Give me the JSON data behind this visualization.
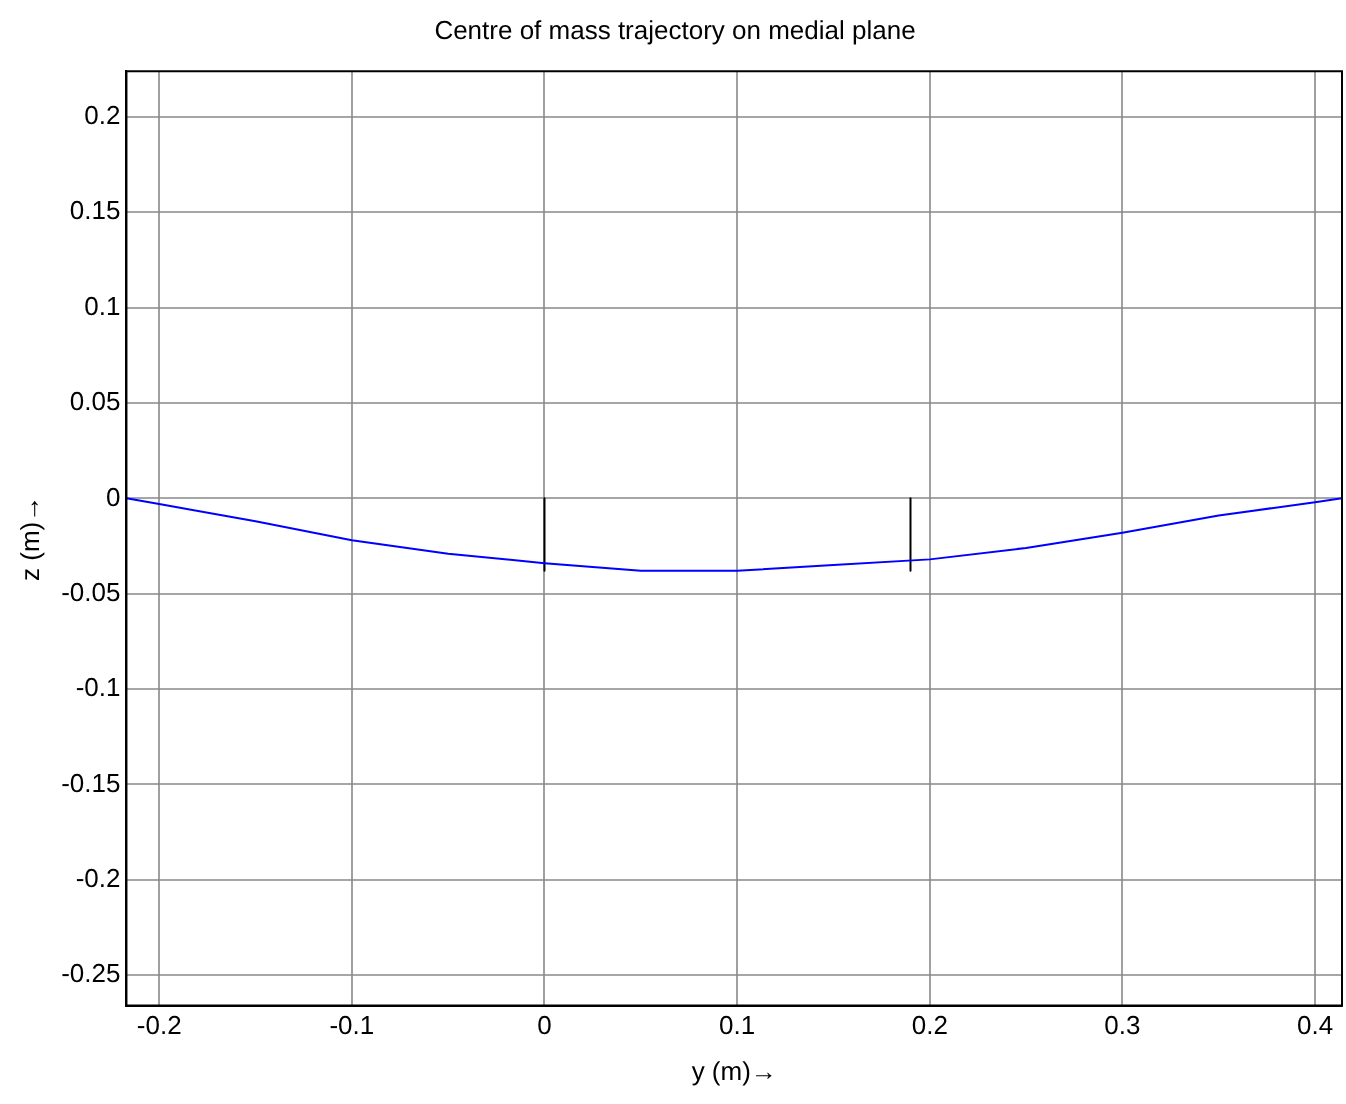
{
  "chart_data": {
    "type": "line",
    "title": "Centre of mass trajectory on medial plane",
    "xlabel": "y (m)→",
    "ylabel": "z (m)→",
    "xlim": [
      -0.217,
      0.414
    ],
    "ylim": [
      -0.266,
      0.224
    ],
    "xticks": [
      -0.2,
      -0.1,
      0,
      0.1,
      0.2,
      0.3,
      0.4
    ],
    "yticks": [
      -0.25,
      -0.2,
      -0.15,
      -0.1,
      -0.05,
      0,
      0.05,
      0.1,
      0.15,
      0.2
    ],
    "series": [
      {
        "color": "#0000ff",
        "x": [
          -0.217,
          -0.2,
          -0.15,
          -0.1,
          -0.05,
          0,
          0.05,
          0.1,
          0.15,
          0.2,
          0.25,
          0.3,
          0.35,
          0.4,
          0.414
        ],
        "values": [
          0,
          -0.003,
          -0.012,
          -0.022,
          -0.029,
          -0.034,
          -0.038,
          -0.038,
          -0.035,
          -0.032,
          -0.026,
          -0.018,
          -0.009,
          -0.002,
          0
        ]
      },
      {
        "color": "#000000",
        "x": [
          0,
          0
        ],
        "values": [
          0,
          -0.038
        ]
      },
      {
        "color": "#000000",
        "x": [
          0.19,
          0.19
        ],
        "values": [
          0,
          -0.038
        ]
      }
    ],
    "grid": true,
    "legend": false,
    "marker": "none",
    "line_style": "solid"
  }
}
